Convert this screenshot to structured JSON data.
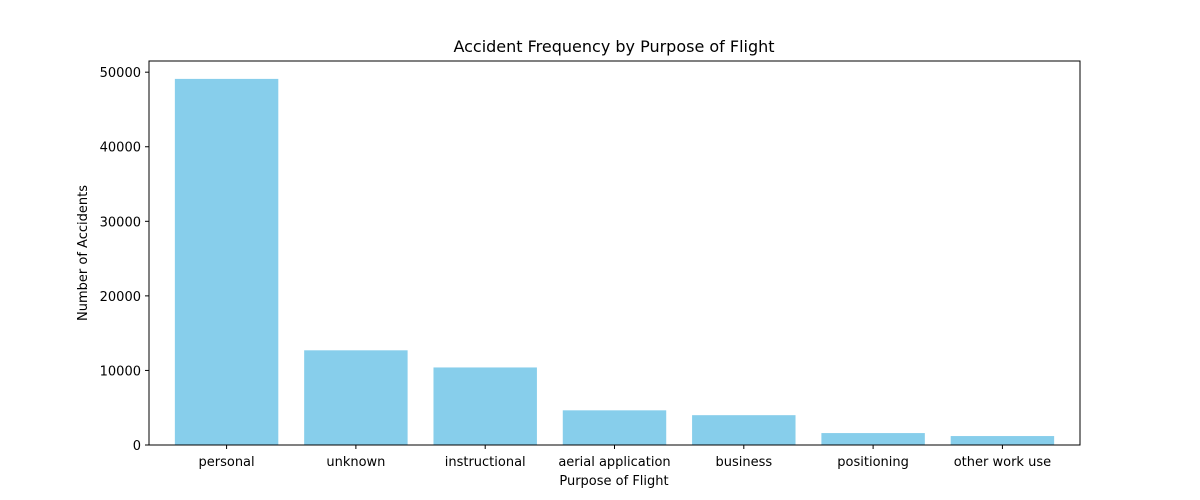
{
  "chart_data": {
    "type": "bar",
    "title": "Accident Frequency by Purpose of Flight",
    "xlabel": "Purpose of Flight",
    "ylabel": "Number of Accidents",
    "categories": [
      "personal",
      "unknown",
      "instructional",
      "aerial application",
      "business",
      "positioning",
      "other work use"
    ],
    "values": [
      49100,
      12700,
      10400,
      4650,
      4000,
      1600,
      1200
    ],
    "ylim": [
      0,
      51500
    ],
    "yticks": [
      0,
      10000,
      20000,
      30000,
      40000,
      50000
    ],
    "grid": false,
    "bar_color": "#87CEEB"
  }
}
